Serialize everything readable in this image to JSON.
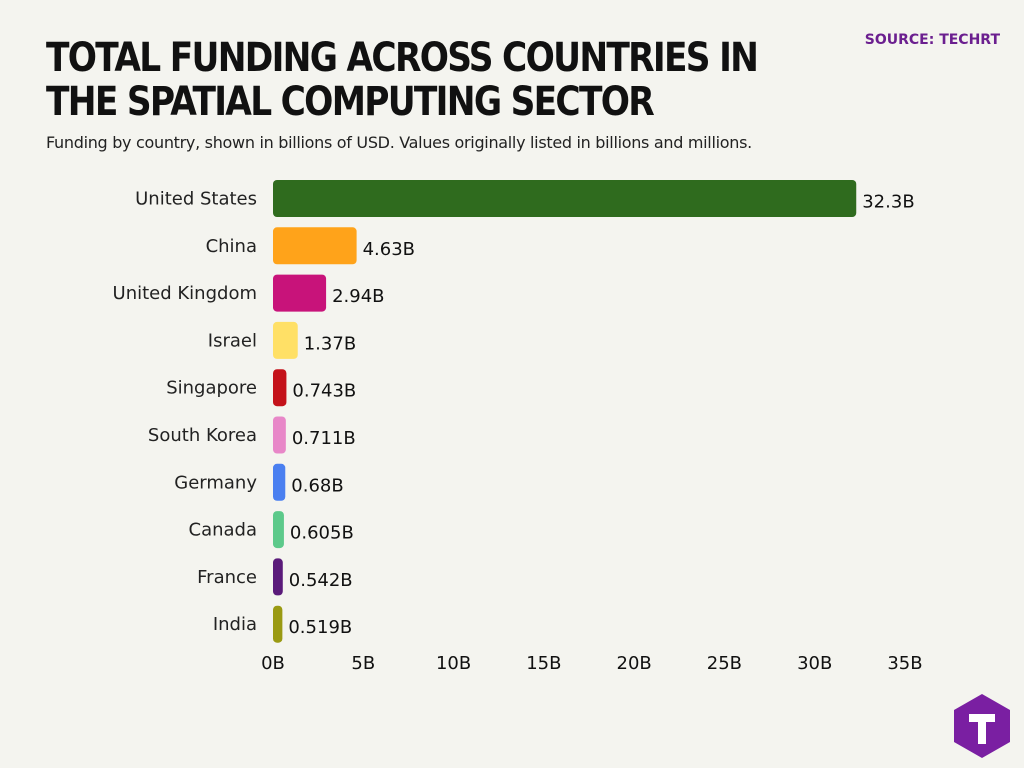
{
  "header": {
    "title": "TOTAL FUNDING ACROSS COUNTRIES IN THE SPATIAL COMPUTING SECTOR",
    "subtitle": "Funding by country, shown in billions of USD. Values originally listed in billions and millions.",
    "source": "SOURCE: TECHRT"
  },
  "logo": {
    "letter": "T",
    "icon": "t-logo-icon",
    "color": "#7a1fa2"
  },
  "chart_data": {
    "type": "bar",
    "orientation": "horizontal",
    "categories": [
      "United States",
      "China",
      "United Kingdom",
      "Israel",
      "Singapore",
      "South Korea",
      "Germany",
      "Canada",
      "France",
      "India"
    ],
    "values": [
      32.3,
      4.63,
      2.94,
      1.37,
      0.743,
      0.711,
      0.68,
      0.605,
      0.542,
      0.519
    ],
    "value_labels": [
      "32.3B",
      "4.63B",
      "2.94B",
      "1.37B",
      "0.743B",
      "0.711B",
      "0.68B",
      "0.605B",
      "0.542B",
      "0.519B"
    ],
    "colors": [
      "#2f6b1e",
      "#ffa31a",
      "#c8137a",
      "#ffe066",
      "#c4121a",
      "#e887c8",
      "#4a7ff0",
      "#5cc98a",
      "#5a1a7a",
      "#9a9a12"
    ],
    "xticks": [
      0,
      5,
      10,
      15,
      20,
      25,
      30,
      35
    ],
    "xtick_labels": [
      "0B",
      "5B",
      "10B",
      "15B",
      "20B",
      "25B",
      "30B",
      "35B"
    ],
    "xlim": [
      0,
      35
    ],
    "grid": false,
    "legend": "none"
  }
}
